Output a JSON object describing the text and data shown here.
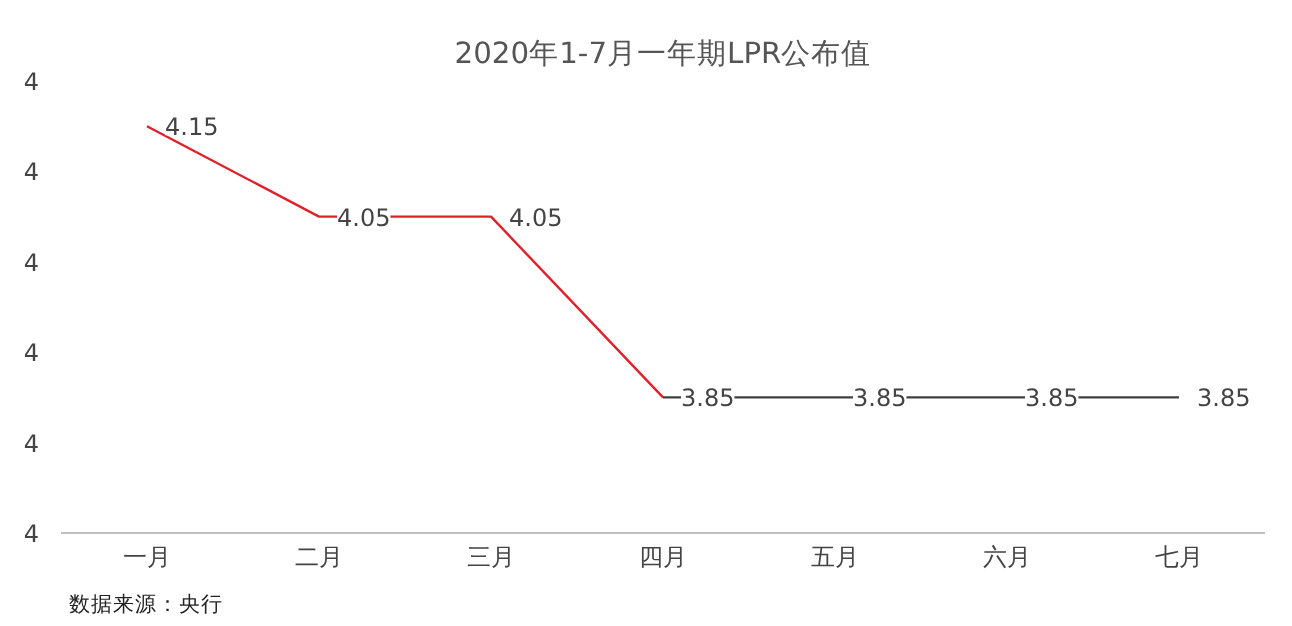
{
  "chart_data": {
    "type": "line",
    "title": "2020年1-7月一年期LPR公布值",
    "categories": [
      "一月",
      "二月",
      "三月",
      "四月",
      "五月",
      "六月",
      "七月"
    ],
    "series": [
      {
        "color": "#e0202a",
        "values": [
          4.15,
          4.05,
          4.05,
          3.85,
          null,
          null,
          null
        ],
        "value_labels": [
          "4.15",
          "4.05",
          "4.05",
          "3.85",
          null,
          null,
          null
        ]
      },
      {
        "color": "#404040",
        "values": [
          null,
          null,
          null,
          3.85,
          3.85,
          3.85,
          3.85
        ],
        "value_labels": [
          null,
          null,
          null,
          null,
          "3.85",
          "3.85",
          "3.85"
        ]
      }
    ],
    "ylim": [
      3.7,
      4.2
    ],
    "yticks": [
      {
        "value": 3.7,
        "label": "4"
      },
      {
        "value": 3.8,
        "label": "4"
      },
      {
        "value": 3.9,
        "label": "4"
      },
      {
        "value": 4.0,
        "label": "4"
      },
      {
        "value": 4.1,
        "label": "4"
      },
      {
        "value": 4.2,
        "label": "4"
      }
    ],
    "grid": false,
    "marker": "none",
    "line_style": "solid",
    "annotations": [
      "数据来源：央行"
    ]
  }
}
